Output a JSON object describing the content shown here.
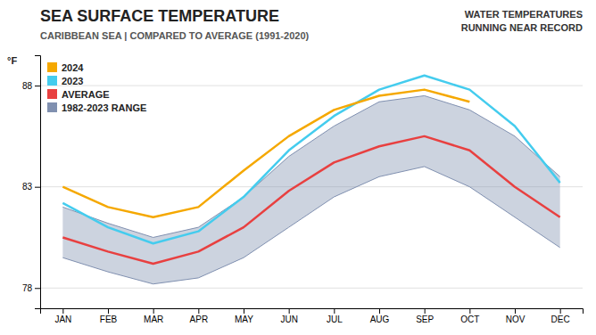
{
  "chart_data": {
    "type": "line",
    "title": "SEA SURFACE TEMPERATURE",
    "subtitle": "CARIBBEAN SEA | COMPARED TO AVERAGE (1991-2020)",
    "ylabel": "°F",
    "annotation": "WATER TEMPERATURES\nRUNNING NEAR RECORD",
    "categories": [
      "JAN",
      "FEB",
      "MAR",
      "APR",
      "MAY",
      "JUN",
      "JUL",
      "AUG",
      "SEP",
      "OCT",
      "NOV",
      "DEC"
    ],
    "series": [
      {
        "name": "2024",
        "color": "#f5a800",
        "values": [
          83.0,
          82.0,
          81.5,
          82.0,
          83.8,
          85.5,
          86.8,
          87.5,
          87.8,
          87.2,
          null,
          null
        ]
      },
      {
        "name": "2023",
        "color": "#44ccee",
        "values": [
          82.2,
          81.0,
          80.2,
          80.8,
          82.5,
          84.8,
          86.5,
          87.8,
          88.5,
          87.8,
          86.0,
          83.2
        ]
      },
      {
        "name": "AVERAGE",
        "color": "#e84040",
        "values": [
          80.5,
          79.8,
          79.2,
          79.8,
          81.0,
          82.8,
          84.2,
          85.0,
          85.5,
          84.8,
          83.0,
          81.5
        ]
      },
      {
        "name": "1982-2023 RANGE",
        "type": "area",
        "color": "#8090b0",
        "values": [
          82.0,
          81.2,
          80.5,
          81.0,
          82.5,
          84.5,
          86.0,
          87.2,
          87.5,
          86.8,
          85.5,
          83.5
        ],
        "lower": [
          79.5,
          78.8,
          78.2,
          78.5,
          79.5,
          81.0,
          82.5,
          83.5,
          84.0,
          83.0,
          81.5,
          80.0
        ]
      }
    ],
    "ylim": [
      77,
      89.5
    ],
    "yticks": [
      78,
      83,
      88
    ],
    "grid": true,
    "legend": "upper left"
  }
}
